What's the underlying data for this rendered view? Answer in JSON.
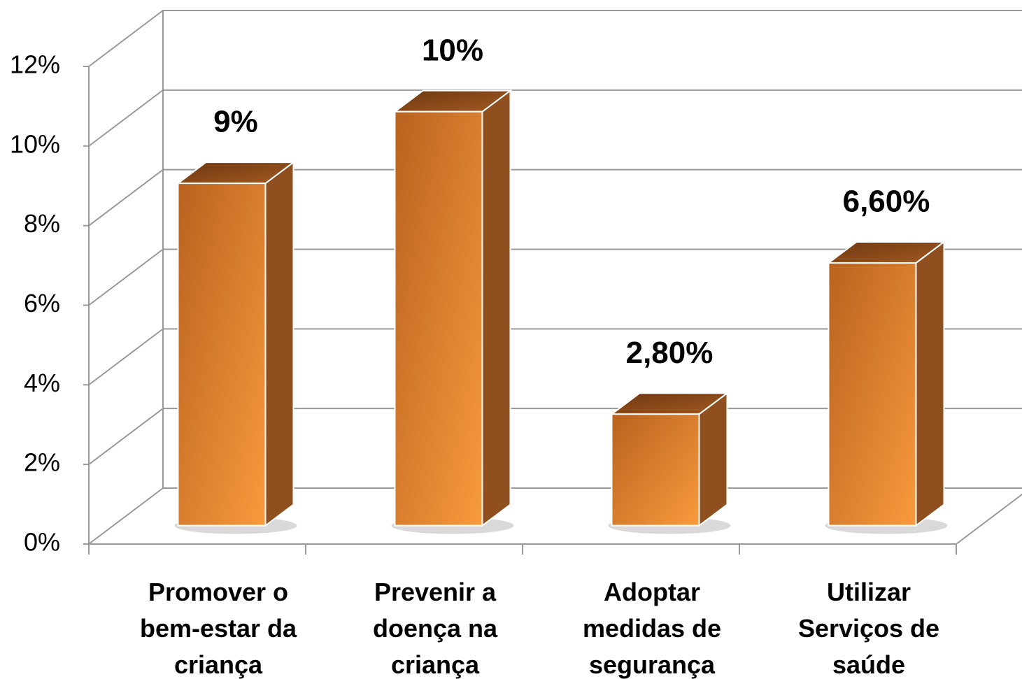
{
  "chart_data": {
    "type": "bar3d",
    "categories": [
      "Promover o bem-estar da criança",
      "Prevenir a doença na criança",
      "Adoptar medidas de segurança",
      "Utilizar Serviços de saúde"
    ],
    "values": [
      8.6,
      10.4,
      2.8,
      6.6
    ],
    "value_labels": [
      "9%",
      "10%",
      "2,80%",
      "6,60%"
    ],
    "color": "#f7953a",
    "ylim": [
      0,
      12
    ],
    "yticks": [
      {
        "value": 0,
        "label": "0%"
      },
      {
        "value": 2,
        "label": "2%"
      },
      {
        "value": 4,
        "label": "4%"
      },
      {
        "value": 6,
        "label": "6%"
      },
      {
        "value": 8,
        "label": "8%"
      },
      {
        "value": 10,
        "label": "10%"
      },
      {
        "value": 12,
        "label": "12%"
      }
    ],
    "grid": true
  }
}
